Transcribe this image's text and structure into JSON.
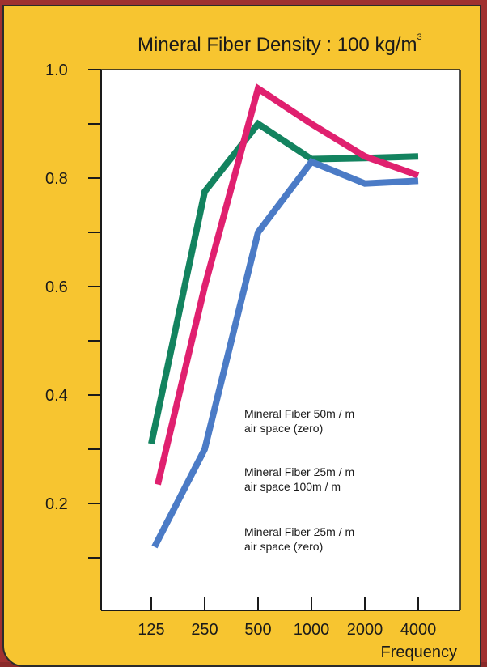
{
  "chart_data": {
    "type": "line",
    "title_main": "Mineral Fiber Density : 100 kg/m",
    "title_sup": "3",
    "xlabel": "Frequency",
    "ylabel": "",
    "categories": [
      "125",
      "250",
      "500",
      "1000",
      "2000",
      "4000"
    ],
    "ylim": [
      0.05,
      1.0
    ],
    "yticks": [
      {
        "value": 1.0,
        "label": "1.0"
      },
      {
        "value": 0.9,
        "label": ""
      },
      {
        "value": 0.8,
        "label": "0.8"
      },
      {
        "value": 0.7,
        "label": ""
      },
      {
        "value": 0.6,
        "label": "0.6"
      },
      {
        "value": 0.5,
        "label": ""
      },
      {
        "value": 0.4,
        "label": "0.4"
      },
      {
        "value": 0.3,
        "label": ""
      },
      {
        "value": 0.2,
        "label": "0.2"
      },
      {
        "value": 0.1,
        "label": ""
      }
    ],
    "grid": false,
    "series": [
      {
        "name_line1": "Mineral Fiber 50m / m",
        "name_line2": "air space (zero)",
        "color": "#13835f",
        "values": [
          0.31,
          0.775,
          0.9,
          0.835,
          0.837,
          0.84
        ]
      },
      {
        "name_line1": "Mineral Fiber 25m / m",
        "name_line2": "air space 100m / m",
        "color": "#e0206f",
        "values": [
          0.235,
          0.6,
          0.965,
          0.9,
          0.84,
          0.805
        ]
      },
      {
        "name_line1": "Mineral Fiber 25m / m",
        "name_line2": "air space (zero)",
        "color": "#4b7bc6",
        "values": [
          0.12,
          0.3,
          0.7,
          0.83,
          0.79,
          0.795
        ]
      }
    ]
  }
}
